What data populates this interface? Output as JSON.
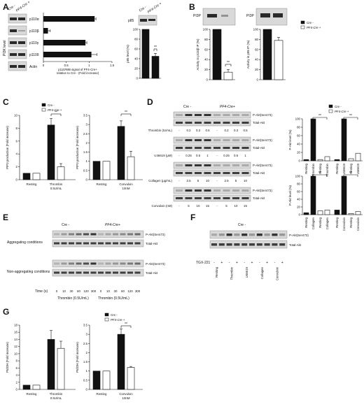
{
  "panels": {
    "A": {
      "letter": "A",
      "lane_labels": [
        "Cre -",
        "PF4-Cre +"
      ],
      "row_labels": [
        "p110α",
        "p110β",
        "p110γ",
        "p110δ",
        "Actin"
      ],
      "side_label": "PI3K level",
      "chart": {
        "type": "bar",
        "categories": [
          "p110α",
          "p110β",
          "p110γ",
          "p110δ"
        ],
        "values": [
          1.12,
          0.1,
          0.92,
          1.05
        ],
        "errors": [
          0.03,
          0.05,
          0.03,
          0.12
        ],
        "xlim": [
          0,
          1.5
        ],
        "xticks": [
          "0",
          "0.5",
          "1",
          "1.5"
        ],
        "xlabel": "p110/WB signal of PF4-Cre+ relative to Cre - (Fold increase)"
      },
      "p85": {
        "lane_labels": [
          "Cre -",
          "PF4-Cre +"
        ],
        "band_label": "p85",
        "ylabel": "p85 level (%)",
        "yticks": [
          "0",
          "20",
          "40",
          "60",
          "80",
          "100"
        ],
        "values": [
          100,
          45
        ],
        "errors": [
          0,
          6
        ],
        "sig": "**"
      }
    },
    "B": {
      "letter": "B",
      "blot_label": "PI3P",
      "chart1": {
        "ylabel": "Activity in p110β IP (%)",
        "values": [
          100,
          15
        ],
        "errors": [
          0,
          5
        ],
        "sig": "**",
        "yticks": [
          "0",
          "20",
          "40",
          "60",
          "80",
          "100"
        ]
      },
      "chart2": {
        "ylabel": "Activity in p85 IP (%)",
        "values": [
          100,
          78
        ],
        "errors": [
          0,
          6
        ],
        "yticks": [
          "0",
          "20",
          "40",
          "60",
          "80",
          "100"
        ]
      },
      "legend": [
        "Cre -",
        "PF4-Cre +"
      ]
    },
    "C": {
      "letter": "C",
      "legend": [
        "Cre -",
        "PF4-Cre +"
      ],
      "chart1": {
        "ylabel": "PIP3 production (Fold increase)",
        "yticks": [
          "0",
          "2",
          "4",
          "6",
          "8",
          "10"
        ],
        "categories": [
          "Resting",
          "Thrombin 0.5U/mL"
        ],
        "cre": [
          1,
          8.5
        ],
        "pf4": [
          1,
          2.0
        ],
        "cre_err": [
          0,
          1.0
        ],
        "pf4_err": [
          0,
          0.5
        ],
        "sig": "**"
      },
      "chart2": {
        "ylabel": "PIP3 production (Fold increase)",
        "yticks": [
          "0",
          "0.5",
          "1",
          "1.5",
          "2",
          "2.5",
          "3",
          "3.5"
        ],
        "categories": [
          "Resting",
          "Convulxin 10nM"
        ],
        "cre": [
          1,
          2.9
        ],
        "pf4": [
          1,
          1.25
        ],
        "cre_err": [
          0,
          0.3
        ],
        "pf4_err": [
          0,
          0.3
        ],
        "sig": "**"
      }
    },
    "D": {
      "letter": "D",
      "group_labels": [
        "Cre -",
        "PF4-Cre+"
      ],
      "band_labels": [
        "P-Akt(Ser473)",
        "Total-Akt"
      ],
      "rows": [
        {
          "agonist": "Thrombin (IU/mL)",
          "doses": [
            "-",
            "0.2",
            "0.3",
            "0.5",
            "-",
            "0.2",
            "0.3",
            "0.5"
          ]
        },
        {
          "agonist": "U46619 (μM)",
          "doses": [
            "-",
            "0.25",
            "0.5",
            "1",
            "-",
            "0.25",
            "0.5",
            "1"
          ]
        },
        {
          "agonist": "Collagen (μg/mL)",
          "doses": [
            "-",
            "2.5",
            "5",
            "10",
            "-",
            "2.5",
            "5",
            "10"
          ]
        },
        {
          "agonist": "Convulxin (nM)",
          "doses": [
            "-",
            "5",
            "10",
            "15",
            "-",
            "5",
            "10",
            "15"
          ]
        }
      ],
      "legend": [
        "Cre -",
        "PF4-Cre +"
      ],
      "chart1": {
        "ylabel": "P-Akt level (%)",
        "yticks": [
          "0",
          "20",
          "40",
          "60",
          "80",
          "100"
        ],
        "categories": [
          "Resting",
          "Thrombin",
          "Resting",
          "Thrombin",
          "Resting",
          "U46619",
          "Resting",
          "U46619"
        ],
        "values": [
          3,
          100,
          3,
          10,
          3,
          100,
          5,
          18
        ],
        "sigs": [
          "**",
          "**"
        ]
      },
      "chart2": {
        "ylabel": "P-Akt level (%)",
        "yticks": [
          "0",
          "20",
          "40",
          "60",
          "80",
          "100"
        ],
        "categories": [
          "Resting",
          "Collagen",
          "Resting",
          "Collagen",
          "Resting",
          "Convulxin",
          "Resting",
          "Convulxin"
        ],
        "values": [
          5,
          100,
          10,
          12,
          12,
          100,
          3,
          8
        ],
        "sigs": [
          "**",
          "**"
        ]
      }
    },
    "E": {
      "letter": "E",
      "group_labels": [
        "Cre -",
        "PF4-Cre+"
      ],
      "cond_labels": [
        "Aggregating conditions",
        "Non-aggregating conditions"
      ],
      "band_labels": [
        "P-Akt(Ser473)",
        "Total-Akt"
      ],
      "time_label": "Time (s)",
      "times": [
        "0",
        "10",
        "30",
        "60",
        "120",
        "300",
        "0",
        "10",
        "30",
        "60",
        "120",
        "300"
      ],
      "thrombin": [
        "Thrombin (0.5U/mL)",
        "Thrombin (0.5U/mL)"
      ]
    },
    "F": {
      "letter": "F",
      "group_label": "Cre -",
      "band_labels": [
        "P-Akt(Ser473)",
        "Total-Akt"
      ],
      "inhibitor": "TGX-221",
      "signs": [
        "-",
        "+",
        "-",
        "+",
        "-",
        "+",
        "-",
        "+",
        "-",
        "+"
      ],
      "agonists": [
        "Resting",
        "Thrombin",
        "U46619",
        "Collagen",
        "Convulxin"
      ]
    },
    "G": {
      "letter": "G",
      "legend": [
        "Cre -",
        "PF4-Cre +"
      ],
      "chart1": {
        "ylabel": "PtdOH (Fold increase)",
        "yticks": [
          "0",
          "2",
          "4",
          "6",
          "8",
          "10",
          "12",
          "14",
          "16",
          "18"
        ],
        "categories": [
          "Resting",
          "Thrombin 0.5U/mL"
        ],
        "cre": [
          1.2,
          14
        ],
        "pf4": [
          1.2,
          11.5
        ],
        "cre_err": [
          0,
          2.5
        ],
        "pf4_err": [
          0,
          2
        ]
      },
      "chart2": {
        "ylabel": "PtdOH (Fold increase)",
        "yticks": [
          "0",
          "0.5",
          "1",
          "1.5",
          "2",
          "2.5",
          "3",
          "3.5"
        ],
        "categories": [
          "Resting",
          "Convulxin 10nM"
        ],
        "cre": [
          1,
          3.0
        ],
        "pf4": [
          1,
          1.2
        ],
        "cre_err": [
          0,
          0.3
        ],
        "pf4_err": [
          0,
          0.05
        ],
        "sig": "**"
      }
    }
  }
}
